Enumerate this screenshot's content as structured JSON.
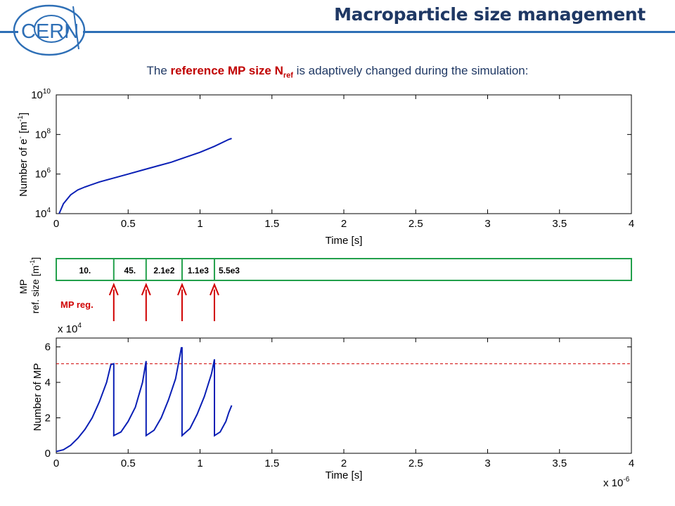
{
  "slide": {
    "title": "Macroparticle size management",
    "logo_text": "CERN",
    "subtitle": {
      "prefix": "The ",
      "highlight": "reference MP size N",
      "highlight_sub": "ref",
      "suffix": " is adaptively changed during the simulation:"
    },
    "mp_reg_label": "MP reg."
  },
  "colors": {
    "title": "#1f3864",
    "accent_line": "#2e6fb6",
    "highlight": "#c00000",
    "data_line": "#0a1fb5",
    "refsize_box": "#22a04b",
    "threshold": "#d00000"
  },
  "chart_data": [
    {
      "type": "line",
      "ylabel_main": "Number of e",
      "ylabel_sup": "-",
      "ylabel_unit_pre": " [m",
      "ylabel_unit_sup": "-1",
      "ylabel_unit_post": "]",
      "xlabel": "Time [s]",
      "y_scale": "log",
      "xlim": [
        0,
        4
      ],
      "ylim_log10": [
        4,
        10
      ],
      "x_ticks": [
        "0",
        "0.5",
        "1",
        "1.5",
        "2",
        "2.5",
        "3",
        "3.5",
        "4"
      ],
      "y_ticks": [
        {
          "base": "10",
          "exp": "4"
        },
        {
          "base": "10",
          "exp": "6"
        },
        {
          "base": "10",
          "exp": "8"
        },
        {
          "base": "10",
          "exp": "10"
        }
      ],
      "grid": false,
      "x_units_scale_label": {
        "text": "x 10",
        "exp": "-6"
      },
      "series": [
        {
          "points": [
            [
              0.02,
              4.0
            ],
            [
              0.05,
              4.5
            ],
            [
              0.1,
              4.95
            ],
            [
              0.15,
              5.2
            ],
            [
              0.2,
              5.35
            ],
            [
              0.3,
              5.6
            ],
            [
              0.4,
              5.8
            ],
            [
              0.5,
              6.0
            ],
            [
              0.6,
              6.2
            ],
            [
              0.7,
              6.4
            ],
            [
              0.8,
              6.6
            ],
            [
              0.9,
              6.85
            ],
            [
              1.0,
              7.1
            ],
            [
              1.1,
              7.4
            ],
            [
              1.2,
              7.75
            ],
            [
              1.22,
              7.8
            ]
          ]
        }
      ]
    },
    {
      "type": "table",
      "ylabel_line1": "MP",
      "ylabel_line2": "ref. size [m",
      "ylabel_line2_sup": "-1",
      "ylabel_line2_post": "]",
      "xlim": [
        0,
        4
      ],
      "segments": [
        {
          "start": 0.0,
          "end": 0.4,
          "label": "10."
        },
        {
          "start": 0.4,
          "end": 0.625,
          "label": "45."
        },
        {
          "start": 0.625,
          "end": 0.875,
          "label": "2.1e2"
        },
        {
          "start": 0.875,
          "end": 1.1,
          "label": "1.1e3"
        },
        {
          "start": 1.1,
          "end": 4.0,
          "label": "5.5e3"
        }
      ],
      "regeneration_times": [
        0.4,
        0.625,
        0.875,
        1.1
      ]
    },
    {
      "type": "line",
      "ylabel": "Number of MP",
      "xlabel": "Time [s]",
      "xlim": [
        0,
        4
      ],
      "ylim": [
        0,
        6.5
      ],
      "y_multiplier": {
        "text": "x 10",
        "exp": "4"
      },
      "x_multiplier": {
        "text": "x 10",
        "exp": "-6"
      },
      "x_ticks": [
        "0",
        "0.5",
        "1",
        "1.5",
        "2",
        "2.5",
        "3",
        "3.5",
        "4"
      ],
      "y_ticks": [
        "0",
        "2",
        "4",
        "6"
      ],
      "grid": false,
      "threshold": 5.05,
      "series": [
        {
          "points": [
            [
              0.0,
              0.1
            ],
            [
              0.05,
              0.2
            ],
            [
              0.1,
              0.45
            ],
            [
              0.15,
              0.85
            ],
            [
              0.2,
              1.35
            ],
            [
              0.25,
              2.0
            ],
            [
              0.3,
              2.9
            ],
            [
              0.35,
              4.0
            ],
            [
              0.38,
              5.0
            ],
            [
              0.4,
              5.05
            ],
            [
              0.4,
              1.0
            ],
            [
              0.45,
              1.2
            ],
            [
              0.5,
              1.8
            ],
            [
              0.55,
              2.6
            ],
            [
              0.6,
              4.0
            ],
            [
              0.625,
              5.2
            ],
            [
              0.625,
              1.0
            ],
            [
              0.68,
              1.3
            ],
            [
              0.73,
              2.0
            ],
            [
              0.78,
              3.0
            ],
            [
              0.83,
              4.2
            ],
            [
              0.86,
              5.5
            ],
            [
              0.87,
              5.95
            ],
            [
              0.875,
              5.95
            ],
            [
              0.875,
              1.0
            ],
            [
              0.93,
              1.4
            ],
            [
              0.98,
              2.2
            ],
            [
              1.03,
              3.2
            ],
            [
              1.08,
              4.5
            ],
            [
              1.1,
              5.3
            ],
            [
              1.1,
              1.0
            ],
            [
              1.14,
              1.2
            ],
            [
              1.18,
              1.8
            ],
            [
              1.2,
              2.3
            ],
            [
              1.22,
              2.7
            ]
          ]
        }
      ]
    }
  ]
}
